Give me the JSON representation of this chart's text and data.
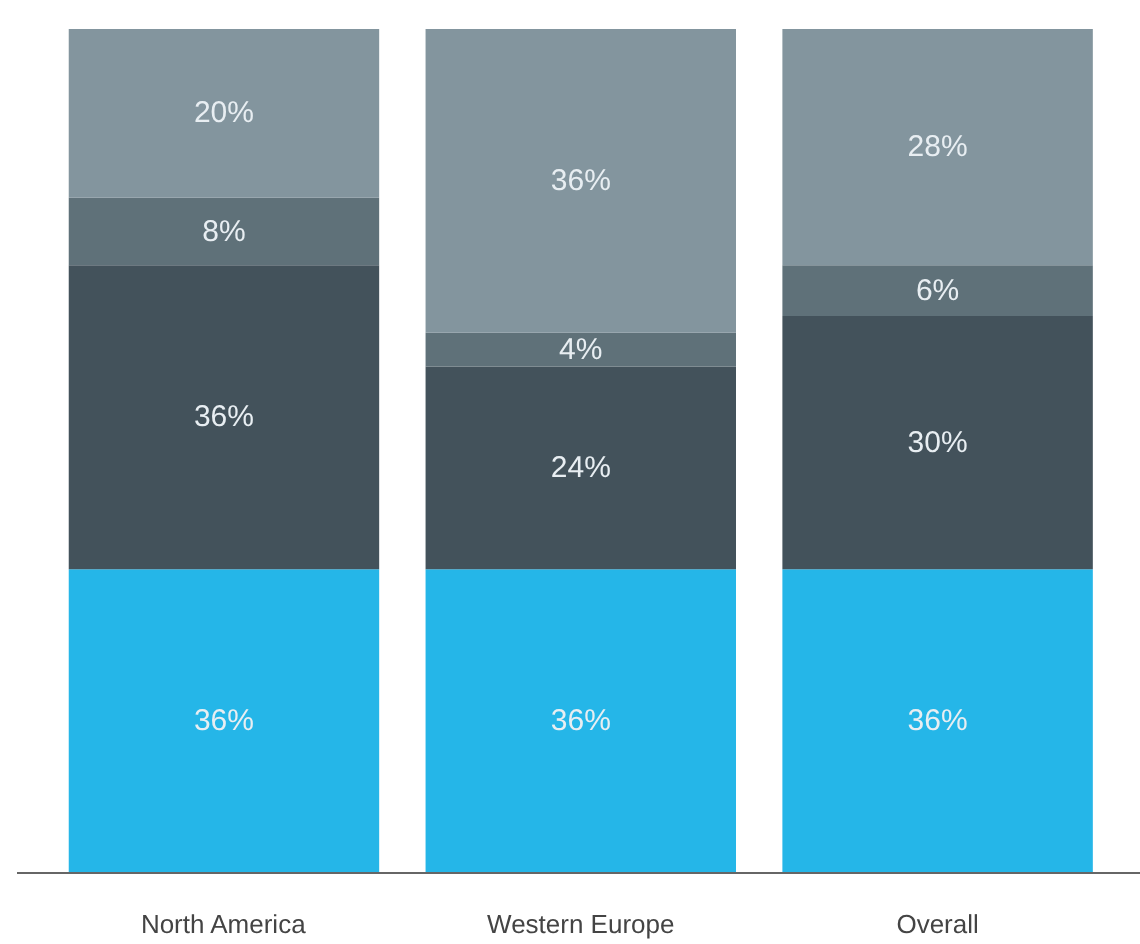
{
  "chart_data": {
    "type": "bar",
    "stacked": true,
    "categories": [
      "North America",
      "Western Europe",
      "Overall"
    ],
    "series": [
      {
        "color": "#25b6e8",
        "values": [
          36,
          36,
          36
        ],
        "value_labels": [
          "36%",
          "36%",
          "36%"
        ]
      },
      {
        "color": "#43525b",
        "values": [
          36,
          24,
          30
        ],
        "value_labels": [
          "36%",
          "24%",
          "30%"
        ]
      },
      {
        "color": "#5f7179",
        "values": [
          8,
          4,
          6
        ],
        "value_labels": [
          "8%",
          "4%",
          "6%"
        ]
      },
      {
        "color": "#83959e",
        "values": [
          20,
          36,
          28
        ],
        "value_labels": [
          "20%",
          "36%",
          "28%"
        ]
      }
    ]
  }
}
